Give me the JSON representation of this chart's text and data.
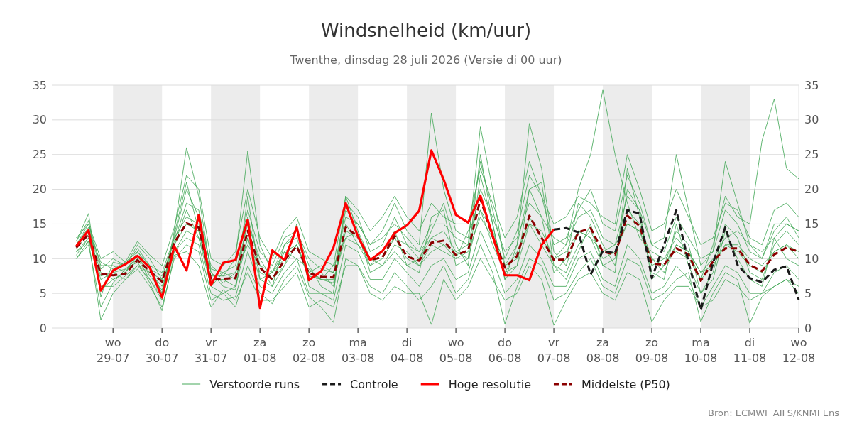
{
  "chart_data": {
    "type": "line",
    "title": "Windsnelheid (km/uur)",
    "subtitle": "Twenthe, dinsdag 28 juli 2026 (Versie di 00 uur)",
    "annotations": [
      "Bron: ECMWF AIFS/KNMI Ens"
    ],
    "x": [
      "2026-07-28T06:00",
      "2026-07-28T12:00",
      "2026-07-28T18:00",
      "2026-07-29T00:00",
      "2026-07-29T06:00",
      "2026-07-29T12:00",
      "2026-07-29T18:00",
      "2026-07-30T00:00",
      "2026-07-30T06:00",
      "2026-07-30T12:00",
      "2026-07-30T18:00",
      "2026-07-31T00:00",
      "2026-07-31T06:00",
      "2026-07-31T12:00",
      "2026-07-31T18:00",
      "2026-08-01T00:00",
      "2026-08-01T06:00",
      "2026-08-01T12:00",
      "2026-08-01T18:00",
      "2026-08-02T00:00",
      "2026-08-02T06:00",
      "2026-08-02T12:00",
      "2026-08-02T18:00",
      "2026-08-03T00:00",
      "2026-08-03T06:00",
      "2026-08-03T12:00",
      "2026-08-03T18:00",
      "2026-08-04T00:00",
      "2026-08-04T06:00",
      "2026-08-04T12:00",
      "2026-08-04T18:00",
      "2026-08-05T00:00",
      "2026-08-05T06:00",
      "2026-08-05T12:00",
      "2026-08-05T18:00",
      "2026-08-06T00:00",
      "2026-08-06T06:00",
      "2026-08-06T12:00",
      "2026-08-06T18:00",
      "2026-08-07T00:00",
      "2026-08-07T06:00",
      "2026-08-07T12:00",
      "2026-08-07T18:00",
      "2026-08-08T00:00",
      "2026-08-08T06:00",
      "2026-08-08T12:00",
      "2026-08-08T18:00",
      "2026-08-09T00:00",
      "2026-08-09T06:00",
      "2026-08-09T12:00",
      "2026-08-09T18:00",
      "2026-08-10T00:00",
      "2026-08-10T06:00",
      "2026-08-10T12:00",
      "2026-08-10T18:00",
      "2026-08-11T00:00",
      "2026-08-11T06:00",
      "2026-08-11T12:00",
      "2026-08-11T18:00",
      "2026-08-12T00:00"
    ],
    "xlim": [
      "2026-07-27T18:00",
      "2026-08-12T00:00"
    ],
    "xticks": [
      {
        "value": "2026-07-29",
        "label": "wo\n29-07"
      },
      {
        "value": "2026-07-30",
        "label": "do\n30-07"
      },
      {
        "value": "2026-07-31",
        "label": "vr\n31-07"
      },
      {
        "value": "2026-08-01",
        "label": "za\n01-08"
      },
      {
        "value": "2026-08-02",
        "label": "zo\n02-08"
      },
      {
        "value": "2026-08-03",
        "label": "ma\n03-08"
      },
      {
        "value": "2026-08-04",
        "label": "di\n04-08"
      },
      {
        "value": "2026-08-05",
        "label": "wo\n05-08"
      },
      {
        "value": "2026-08-06",
        "label": "do\n06-08"
      },
      {
        "value": "2026-08-07",
        "label": "vr\n07-08"
      },
      {
        "value": "2026-08-08",
        "label": "za\n08-08"
      },
      {
        "value": "2026-08-09",
        "label": "zo\n09-08"
      },
      {
        "value": "2026-08-10",
        "label": "ma\n10-08"
      },
      {
        "value": "2026-08-11",
        "label": "di\n11-08"
      },
      {
        "value": "2026-08-12",
        "label": "wo\n12-08"
      }
    ],
    "ylim": [
      0,
      35
    ],
    "yticks": [
      0,
      5,
      10,
      15,
      20,
      25,
      30,
      35
    ],
    "y2lim": [
      0,
      35
    ],
    "y2ticks": [
      0,
      5,
      10,
      15,
      20,
      25,
      30,
      35
    ],
    "grid": "y",
    "legend": "bottom",
    "bands": [
      {
        "axis": "x",
        "from": "2026-07-29",
        "to": "2026-07-30",
        "color": "#ececec"
      },
      {
        "axis": "x",
        "from": "2026-07-31",
        "to": "2026-08-01",
        "color": "#ececec"
      },
      {
        "axis": "x",
        "from": "2026-08-02",
        "to": "2026-08-03",
        "color": "#ececec"
      },
      {
        "axis": "x",
        "from": "2026-08-04",
        "to": "2026-08-05",
        "color": "#ececec"
      },
      {
        "axis": "x",
        "from": "2026-08-06",
        "to": "2026-08-07",
        "color": "#ececec"
      },
      {
        "axis": "x",
        "from": "2026-08-08",
        "to": "2026-08-09",
        "color": "#ececec"
      },
      {
        "axis": "x",
        "from": "2026-08-10",
        "to": "2026-08-11",
        "color": "#ececec"
      }
    ],
    "series": [
      {
        "name": "Verstoorde runs",
        "color": "#47a95b",
        "values": [
          12.5,
          16.5,
          4.5,
          9.5,
          9,
          11.5,
          9,
          5,
          14,
          26,
          19,
          8,
          6,
          5.5,
          16,
          9,
          6,
          12,
          14,
          9,
          6,
          5,
          18,
          16,
          11,
          12,
          16,
          12,
          10,
          14,
          18,
          12,
          9,
          22,
          15,
          7,
          12,
          20,
          16,
          8,
          10,
          18,
          16,
          12,
          9,
          20,
          17,
          7,
          9,
          14,
          12,
          5,
          8,
          15,
          13,
          8,
          7,
          12,
          14,
          12
        ]
      },
      {
        "color": "#47a95b",
        "values": [
          10,
          12.5,
          1.2,
          5,
          7,
          8.5,
          6,
          3,
          10,
          12,
          11,
          4,
          5,
          3,
          9,
          5,
          3.5,
          7,
          9,
          4.5,
          3,
          0.8,
          10,
          9,
          6,
          5,
          8,
          6,
          4,
          6,
          9,
          5,
          7,
          12,
          8,
          0.6,
          6,
          10,
          9,
          4,
          5,
          8,
          10,
          6,
          5,
          10,
          9,
          4,
          5,
          7,
          8,
          0.9,
          5,
          8,
          7,
          0.7,
          4.5,
          6,
          7,
          5
        ]
      },
      {
        "color": "#47a95b",
        "values": [
          12,
          14.5,
          8.5,
          10,
          9,
          12,
          10,
          7,
          13,
          20,
          16,
          9,
          7.5,
          10,
          25.5,
          12,
          8,
          12,
          13,
          8,
          9,
          8,
          16,
          15,
          12,
          14,
          18,
          14,
          12,
          31,
          20,
          14,
          13,
          24,
          17,
          10,
          14,
          22,
          19,
          12,
          13,
          17,
          20,
          15,
          14,
          22,
          18,
          12,
          11,
          16,
          13,
          10,
          11,
          17,
          15,
          11,
          10,
          14,
          16,
          13
        ]
      },
      {
        "color": "#47a95b",
        "values": [
          11,
          13,
          7,
          8,
          8.5,
          10,
          8,
          6,
          12,
          17,
          13,
          6,
          8,
          7,
          13,
          7,
          8,
          10,
          12,
          7,
          8,
          6,
          15,
          12,
          9,
          11,
          14,
          9,
          10,
          13,
          14,
          11,
          12,
          29,
          20,
          9,
          12,
          29.5,
          23,
          11,
          9,
          14,
          13,
          9,
          10,
          17,
          15,
          10,
          8,
          12,
          11,
          7,
          9,
          12,
          12,
          10,
          9,
          11,
          12,
          10
        ]
      },
      {
        "color": "#47a95b",
        "values": [
          13,
          15,
          9,
          9,
          8,
          11,
          9,
          8,
          13,
          16,
          15,
          8,
          6.5,
          8,
          15,
          10,
          7,
          11,
          10,
          8.5,
          7,
          9,
          13,
          14,
          10,
          9,
          12,
          11,
          9,
          11,
          12,
          10,
          14,
          17,
          12,
          8,
          11,
          15,
          14,
          10,
          12,
          20,
          25,
          34.3,
          25,
          18,
          13,
          11,
          10,
          13,
          11,
          8,
          10,
          13,
          14,
          12,
          11,
          13,
          15,
          14
        ]
      },
      {
        "color": "#47a95b",
        "values": [
          11.5,
          13.5,
          8,
          7,
          8,
          10.5,
          7.5,
          5.5,
          12,
          15,
          14,
          7,
          7,
          6,
          13,
          8,
          7,
          9,
          12,
          7.5,
          7,
          6.5,
          14,
          13,
          9,
          10,
          13,
          10,
          9,
          12,
          11,
          10,
          11,
          16,
          13,
          8,
          9,
          15,
          12,
          9,
          8,
          12,
          14,
          10,
          11,
          15,
          14,
          9,
          10,
          11,
          10,
          7,
          12,
          19,
          16,
          15,
          27,
          33,
          23,
          21.5
        ]
      },
      {
        "color": "#47a95b",
        "values": [
          10.5,
          13,
          6,
          6,
          7.5,
          9,
          7,
          4,
          11,
          13,
          12,
          5,
          4,
          4.5,
          11,
          6,
          5,
          8,
          10,
          5,
          5,
          4,
          12,
          11,
          7,
          7,
          10,
          8,
          6,
          9,
          10,
          7,
          8,
          14,
          10,
          5,
          7,
          12,
          10,
          6,
          6,
          10,
          11,
          7,
          6,
          12,
          10,
          5,
          6,
          9,
          7,
          3,
          6,
          9,
          8,
          5,
          5,
          8,
          9,
          7
        ]
      },
      {
        "color": "#47a95b",
        "values": [
          12,
          14,
          9.5,
          8.5,
          9.5,
          11,
          8.5,
          7.5,
          12.5,
          18,
          17,
          8.5,
          8,
          9,
          17,
          11,
          9,
          13,
          14,
          10,
          8.5,
          8,
          17,
          15,
          12,
          13,
          15,
          13,
          11,
          15,
          15,
          13,
          12,
          20,
          16,
          11,
          13,
          18,
          16,
          13,
          12,
          16,
          17,
          13,
          12,
          19,
          17,
          12,
          13,
          25,
          17,
          9,
          11,
          24,
          18,
          12,
          10,
          15,
          15,
          14
        ]
      },
      {
        "color": "#47a95b",
        "values": [
          11,
          12.5,
          7.5,
          8,
          7,
          9,
          8,
          7,
          11,
          14,
          13,
          7.5,
          7.5,
          8,
          12,
          9,
          8,
          11,
          12,
          8,
          7,
          7,
          13,
          12,
          10,
          11,
          13,
          12,
          11,
          13,
          12,
          11,
          10,
          17,
          14,
          9,
          10,
          16,
          13,
          10,
          11,
          14,
          13,
          11,
          12,
          15,
          14,
          10,
          9,
          12,
          11,
          8,
          9,
          12,
          11,
          9,
          8,
          11,
          12,
          11
        ]
      },
      {
        "color": "#47a95b",
        "values": [
          12.5,
          15.5,
          5.5,
          7,
          8,
          10,
          7,
          4.5,
          13.5,
          21,
          14,
          6,
          5,
          6,
          19,
          7,
          6,
          9,
          15,
          6,
          5,
          5,
          19,
          14,
          8,
          9,
          11,
          9,
          8,
          16,
          17,
          9,
          10,
          25,
          15,
          7,
          9,
          20,
          21,
          9,
          7,
          11,
          15,
          9,
          8,
          23,
          16,
          8,
          7,
          15,
          9,
          5,
          7,
          14,
          10,
          7,
          6,
          13,
          10,
          9
        ]
      },
      {
        "color": "#47a95b",
        "values": [
          10,
          12,
          3,
          6.5,
          8.5,
          9.5,
          6.5,
          2.5,
          10.5,
          11,
          9,
          3,
          5.5,
          4,
          8,
          4,
          4,
          6,
          8,
          3,
          4,
          3,
          9,
          9,
          5,
          4,
          6,
          5,
          5,
          0.5,
          7,
          4,
          6,
          10,
          7,
          4,
          5,
          9,
          7,
          0.4,
          4,
          7,
          8,
          5,
          4,
          8,
          7,
          0.9,
          4,
          6,
          6,
          3,
          4,
          7,
          6,
          4,
          5,
          6,
          7,
          6
        ]
      },
      {
        "color": "#47a95b",
        "values": [
          12,
          15,
          10,
          11,
          9.5,
          12.5,
          10.5,
          9,
          14.5,
          22,
          20,
          10,
          9,
          11,
          20,
          13,
          10,
          14,
          16,
          11,
          10,
          9,
          19,
          17,
          14,
          16,
          19,
          16,
          14,
          18,
          16,
          15,
          15,
          23,
          18,
          13,
          16,
          24,
          19,
          15,
          16,
          19,
          18,
          16,
          15,
          25,
          20,
          14,
          15,
          20,
          16,
          12,
          13,
          18,
          17,
          13,
          12,
          17,
          18,
          16
        ]
      },
      {
        "name": "Controle",
        "color": "#1a1a1a",
        "line_style": "dashed",
        "values": [
          null,
          null,
          null,
          null,
          null,
          null,
          null,
          null,
          null,
          null,
          null,
          null,
          null,
          null,
          null,
          null,
          null,
          null,
          null,
          null,
          null,
          null,
          null,
          null,
          null,
          null,
          null,
          null,
          null,
          null,
          null,
          null,
          null,
          null,
          null,
          null,
          null,
          null,
          null,
          14.2,
          14.4,
          13.8,
          7.7,
          11.1,
          10.8,
          17,
          16.5,
          7.2,
          12,
          17,
          9.5,
          2.6,
          9.4,
          14.5,
          9.1,
          7.2,
          6.6,
          8.4,
          8.9,
          4.1
        ]
      },
      {
        "name": "Hoge resolutie",
        "color": "#ff0000",
        "values": [
          11.8,
          14.1,
          5.4,
          8.3,
          9.2,
          10.4,
          8.7,
          4.4,
          11.8,
          8.3,
          16.3,
          6.2,
          9.4,
          9.8,
          15.6,
          2.9,
          11.2,
          9.8,
          14.5,
          6.9,
          8.2,
          11.6,
          18,
          13.2,
          9.8,
          11.1,
          13.7,
          14.8,
          16.9,
          25.6,
          21.4,
          16.3,
          15.2,
          19.1,
          13.3,
          7.6,
          7.6,
          6.9,
          12,
          14.2,
          null,
          null,
          null,
          null,
          null,
          null,
          null,
          null,
          null,
          null,
          null,
          null,
          null,
          null,
          null,
          null,
          null,
          null,
          null,
          null
        ]
      },
      {
        "name": "Middelste (P50)",
        "color": "#8b0000",
        "line_style": "dashed",
        "values": [
          11.6,
          13.5,
          7.8,
          7.6,
          7.8,
          9.8,
          8.2,
          6.7,
          12.3,
          15.1,
          14.5,
          7,
          7.1,
          7.2,
          14,
          8.7,
          7,
          9.8,
          11.8,
          7.9,
          7.4,
          7.3,
          14.5,
          13.2,
          9.8,
          10.2,
          13.3,
          10.3,
          9.7,
          12.3,
          12.6,
          10.5,
          11.2,
          18.6,
          13.2,
          8.7,
          10.4,
          16.2,
          13,
          9.8,
          9.9,
          13.8,
          14.4,
          11,
          10.6,
          16.2,
          14.7,
          9.3,
          9.1,
          11.5,
          10.6,
          6.8,
          9.6,
          11.5,
          11.5,
          9.1,
          8.2,
          10.6,
          11.6,
          11
        ]
      }
    ]
  }
}
